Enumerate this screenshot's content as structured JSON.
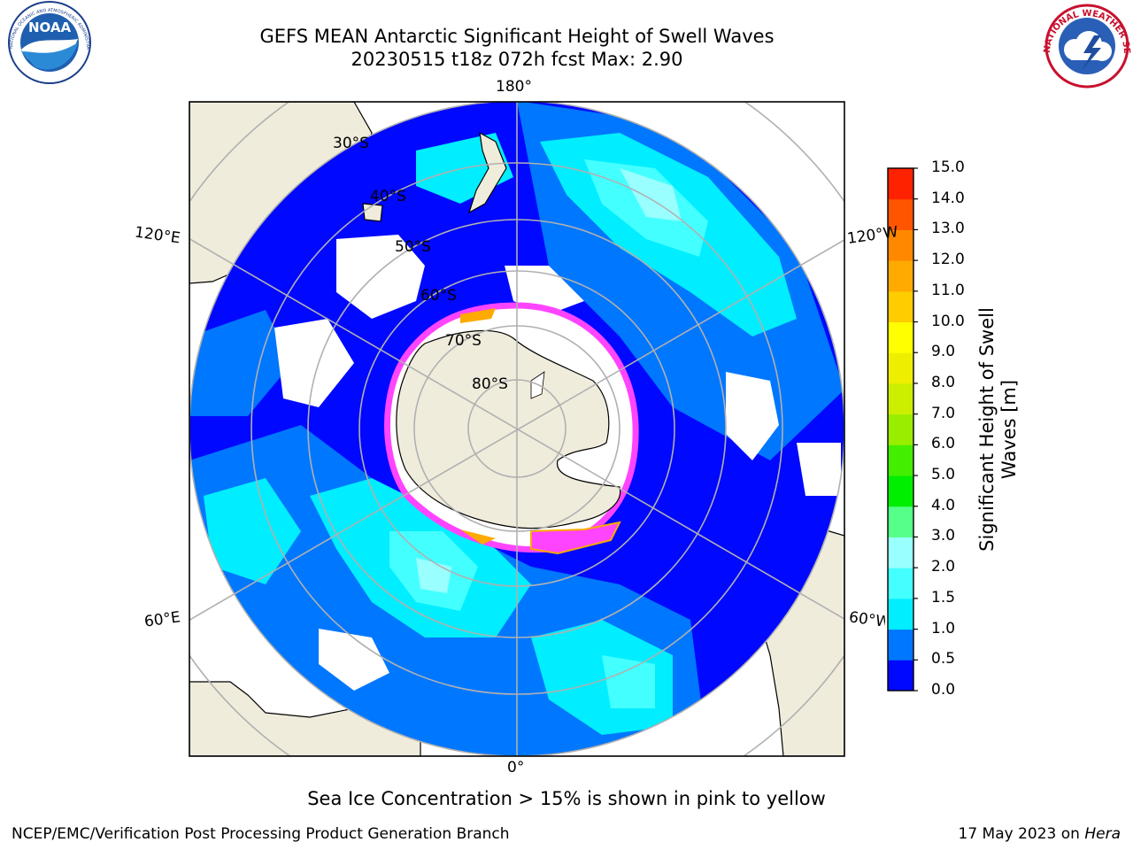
{
  "title_line1": "GEFS MEAN Antarctic Significant Height of Swell Waves",
  "title_line2": "20230515 t18z 072h fcst   Max: 2.90",
  "map": {
    "projection": "south-polar-stereographic",
    "longitude_labels": [
      "180°",
      "120°E",
      "120°W",
      "60°E",
      "60°W",
      "0°"
    ],
    "latitude_labels": [
      "30°S",
      "40°S",
      "50°S",
      "60°S",
      "70°S",
      "80°S"
    ],
    "land_color": "#efecdc",
    "sea_ice_colors": [
      "#ff44ff",
      "#ffaa00",
      "#ffff33"
    ]
  },
  "colorbar": {
    "label": "Significant Height of Swell Waves [m]",
    "tick_labels": [
      "0.0",
      "0.5",
      "1.0",
      "1.5",
      "2.0",
      "3.0",
      "4.0",
      "5.0",
      "6.0",
      "7.0",
      "8.0",
      "9.0",
      "10.0",
      "11.0",
      "12.0",
      "13.0",
      "14.0",
      "15.0"
    ],
    "colors": [
      "#0008ff",
      "#0077ff",
      "#00eeff",
      "#44ffff",
      "#99ffff",
      "#55ff88",
      "#00ee00",
      "#44ee00",
      "#99ee00",
      "#ccee00",
      "#eeee00",
      "#ffff00",
      "#ffcc00",
      "#ffaa00",
      "#ff8800",
      "#ff5500",
      "#ff2200"
    ]
  },
  "caption": "Sea Ice Concentration > 15% is shown in pink to yellow",
  "footer_left": "NCEP/EMC/Verification Post Processing Product Generation Branch",
  "footer_date": "17 May 2023 on ",
  "footer_machine": "Hera",
  "logos": {
    "noaa_text": "NOAA",
    "noaa_ring_text": "NATIONAL OCEANIC AND ATMOSPHERIC ADMINISTRATION · U.S. DEPARTMENT OF COMMERCE",
    "nws_ring_text": "NATIONAL WEATHER SERVICE"
  }
}
